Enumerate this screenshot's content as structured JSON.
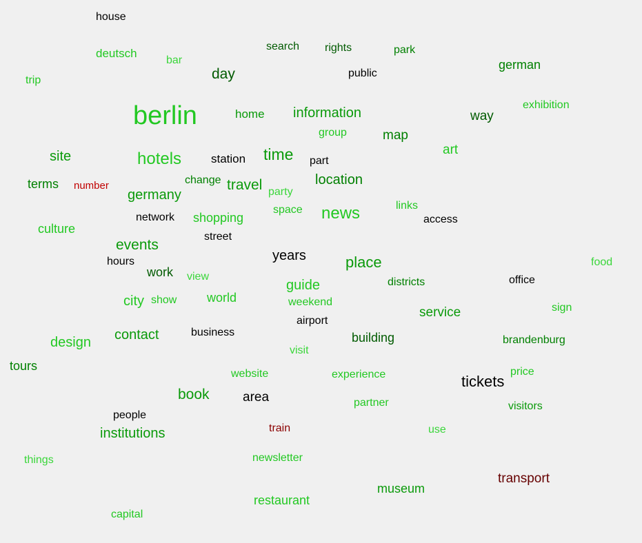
{
  "words": [
    "house",
    "deutsch",
    "bar",
    "search",
    "rights",
    "park",
    "german",
    "trip",
    "day",
    "public",
    "berlin",
    "home",
    "information",
    "exhibition",
    "way",
    "group",
    "map",
    "site",
    "hotels",
    "station",
    "time",
    "part",
    "art",
    "terms",
    "number",
    "change",
    "travel",
    "party",
    "location",
    "germany",
    "links",
    "space",
    "news",
    "access",
    "culture",
    "network",
    "shopping",
    "street",
    "events",
    "years",
    "hours",
    "place",
    "food",
    "work",
    "view",
    "districts",
    "office",
    "guide",
    "city",
    "show",
    "world",
    "weekend",
    "sign",
    "service",
    "airport",
    "contact",
    "business",
    "design",
    "building",
    "brandenburg",
    "visit",
    "tours",
    "website",
    "experience",
    "price",
    "tickets",
    "book",
    "area",
    "partner",
    "visitors",
    "people",
    "institutions",
    "train",
    "use",
    "things",
    "newsletter",
    "transport",
    "museum",
    "restaurant",
    "capital"
  ]
}
